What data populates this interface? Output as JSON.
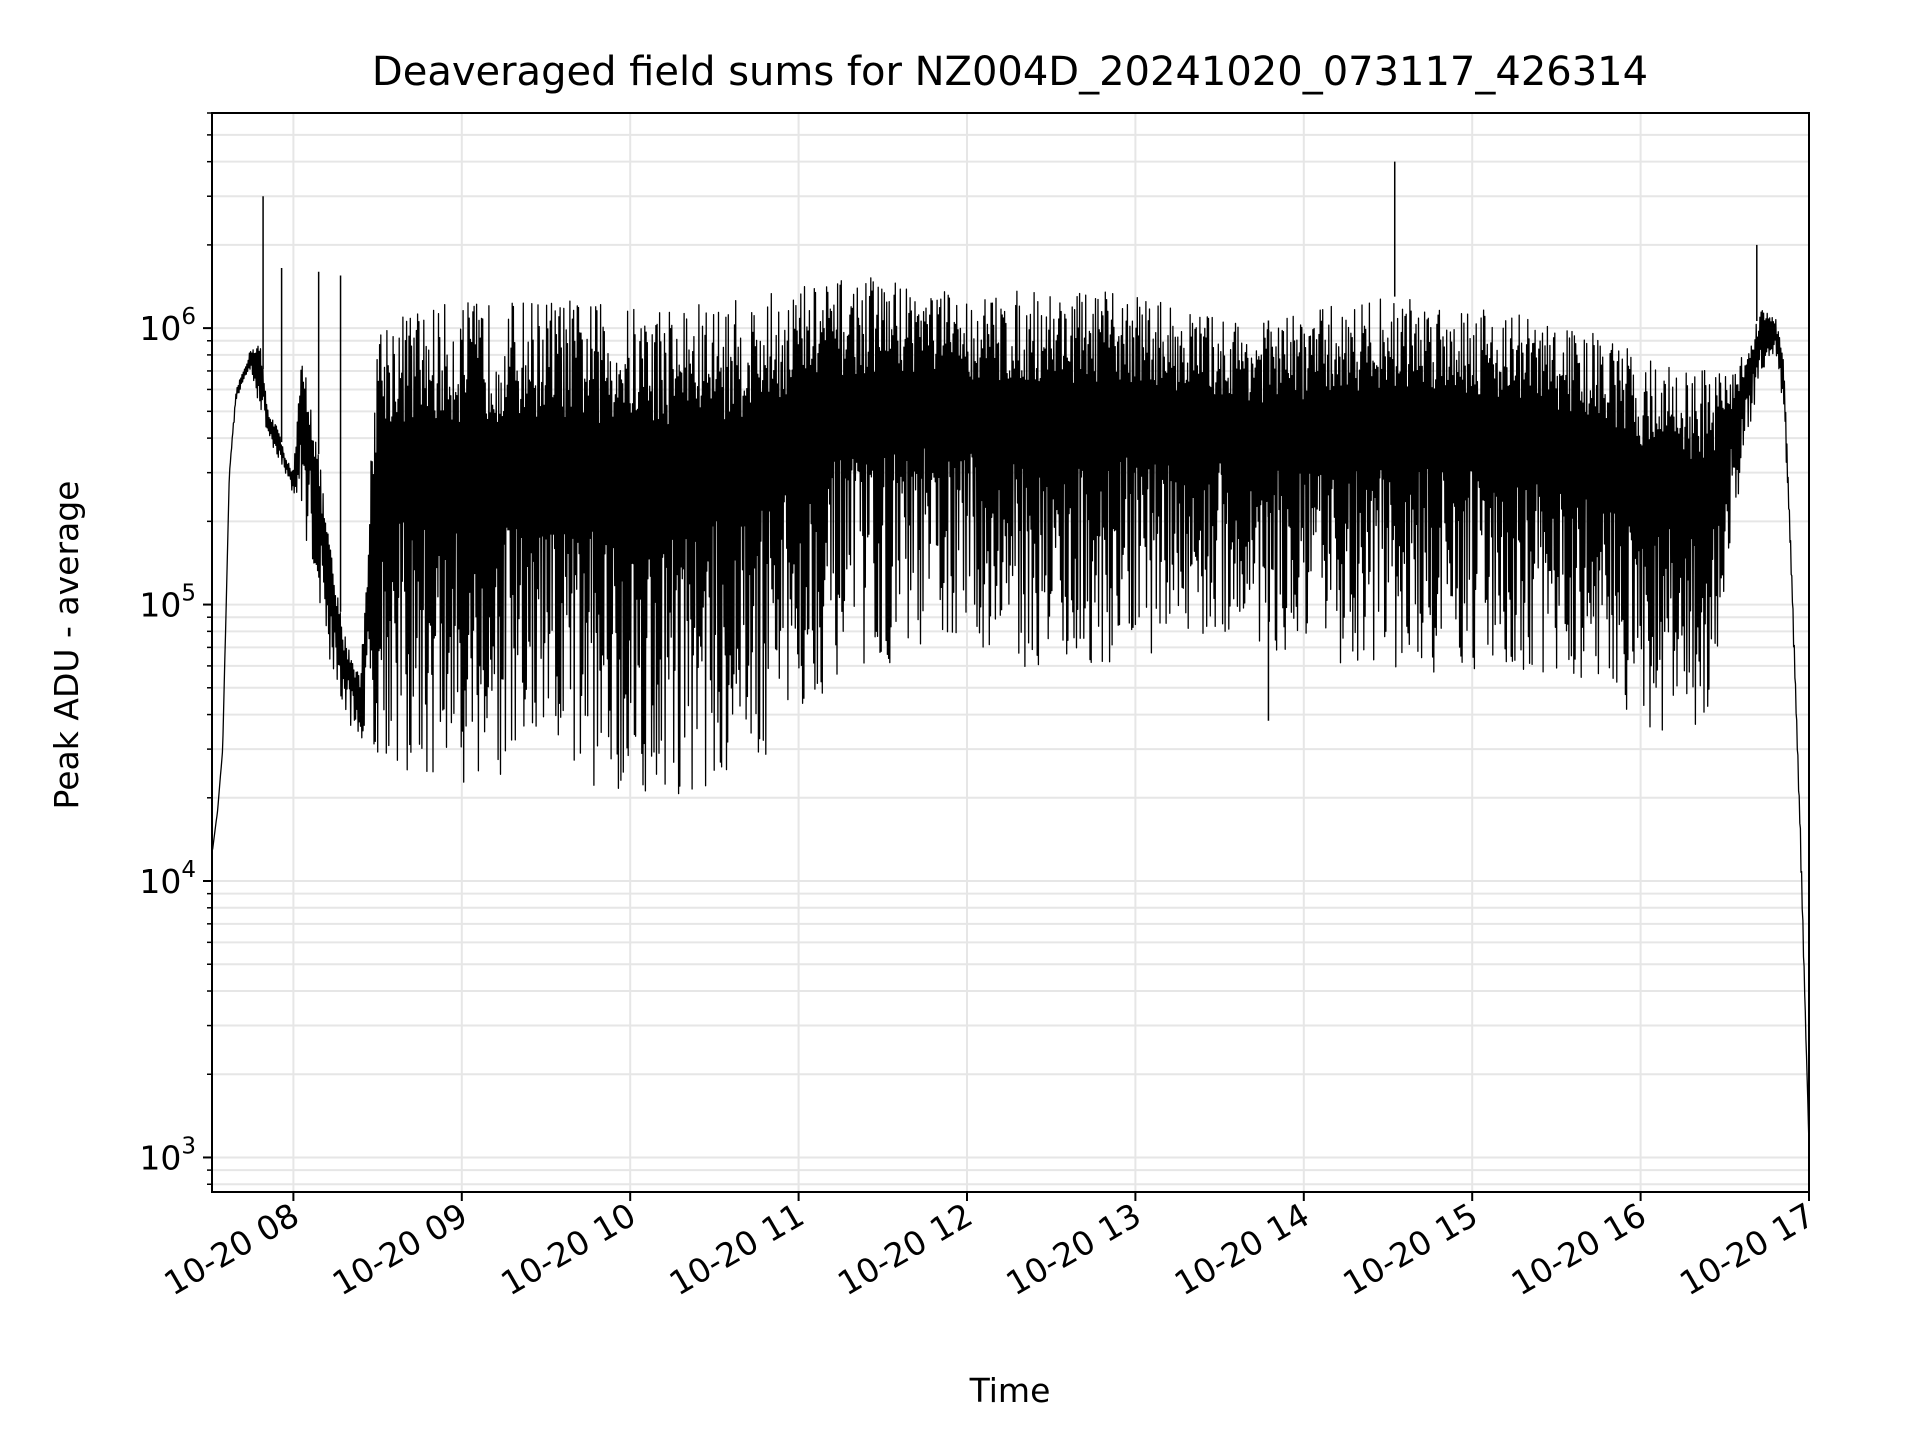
{
  "chart_data": {
    "type": "line",
    "title": "Deaveraged field sums for NZ004D_20241020_073117_426314",
    "xlabel": "Time",
    "ylabel": "Peak ADU - average",
    "yscale": "log",
    "grid": true,
    "xlim": [
      "2024-10-20 07:31",
      "2024-10-20 17:00"
    ],
    "ylim": [
      750,
      6000000
    ],
    "x_ticks": [
      "10-20 08",
      "10-20 09",
      "10-20 10",
      "10-20 11",
      "10-20 12",
      "10-20 13",
      "10-20 14",
      "10-20 15",
      "10-20 16",
      "10-20 17"
    ],
    "y_ticks": [
      {
        "value": 1000,
        "base": "10",
        "exp": "3"
      },
      {
        "value": 10000,
        "base": "10",
        "exp": "4"
      },
      {
        "value": 100000,
        "base": "10",
        "exp": "5"
      },
      {
        "value": 1000000,
        "base": "10",
        "exp": "6"
      }
    ],
    "line_color": "#000000",
    "grid_color": "#e6e6e6",
    "series": [
      {
        "x_hours": [
          7.52,
          7.55,
          7.58,
          7.62,
          7.66,
          7.7,
          7.75,
          7.8,
          7.85,
          7.9,
          7.95,
          8.0,
          8.05,
          8.1,
          8.15,
          8.2,
          8.25,
          8.3,
          8.4,
          8.5,
          8.6,
          8.75,
          9.0,
          9.25,
          9.5,
          9.75,
          10.0,
          10.25,
          10.5,
          10.75,
          11.0,
          11.25,
          11.5,
          11.75,
          12.0,
          12.25,
          12.5,
          12.75,
          13.0,
          13.25,
          13.5,
          13.75,
          14.0,
          14.25,
          14.5,
          14.75,
          15.0,
          15.25,
          15.5,
          15.75,
          16.0,
          16.2,
          16.4,
          16.55,
          16.65,
          16.72,
          16.8,
          16.85,
          16.9,
          16.95,
          17.0
        ],
        "upper": [
          13000,
          18000,
          30000,
          300000,
          600000,
          700000,
          850000,
          900000,
          500000,
          450000,
          350000,
          300000,
          800000,
          600000,
          350000,
          200000,
          120000,
          80000,
          55000,
          1100000,
          1150000,
          1200000,
          1250000,
          1250000,
          1300000,
          1250000,
          1200000,
          1250000,
          1250000,
          1300000,
          1450000,
          1500000,
          1550000,
          1450000,
          1300000,
          1350000,
          1400000,
          1350000,
          1350000,
          1200000,
          1100000,
          1050000,
          1150000,
          1250000,
          1300000,
          1300000,
          1250000,
          1150000,
          1050000,
          950000,
          800000,
          750000,
          700000,
          700000,
          900000,
          1200000,
          1100000,
          800000,
          120000,
          15000,
          1100
        ],
        "lower": [
          13000,
          18000,
          30000,
          300000,
          550000,
          620000,
          700000,
          500000,
          400000,
          350000,
          300000,
          250000,
          200000,
          150000,
          100000,
          70000,
          50000,
          40000,
          32000,
          28000,
          25000,
          22000,
          21000,
          22000,
          24000,
          22000,
          21000,
          20000,
          22000,
          25000,
          40000,
          55000,
          60000,
          70000,
          75000,
          60000,
          58000,
          60000,
          65000,
          70000,
          75000,
          70000,
          60000,
          60000,
          58000,
          55000,
          55000,
          55000,
          50000,
          55000,
          35000,
          35000,
          30000,
          200000,
          400000,
          700000,
          800000,
          500000,
          100000,
          12000,
          1100
        ]
      }
    ],
    "spikes": [
      {
        "x_hour": 7.82,
        "value": 3000000
      },
      {
        "x_hour": 14.54,
        "value": 4000000
      },
      {
        "x_hour": 16.69,
        "value": 2000000
      },
      {
        "x_hour": 8.15,
        "value": 1600000
      },
      {
        "x_hour": 8.28,
        "value": 1550000
      },
      {
        "x_hour": 7.93,
        "value": 1650000
      },
      {
        "x_hour": 13.79,
        "value": 38000
      }
    ]
  }
}
